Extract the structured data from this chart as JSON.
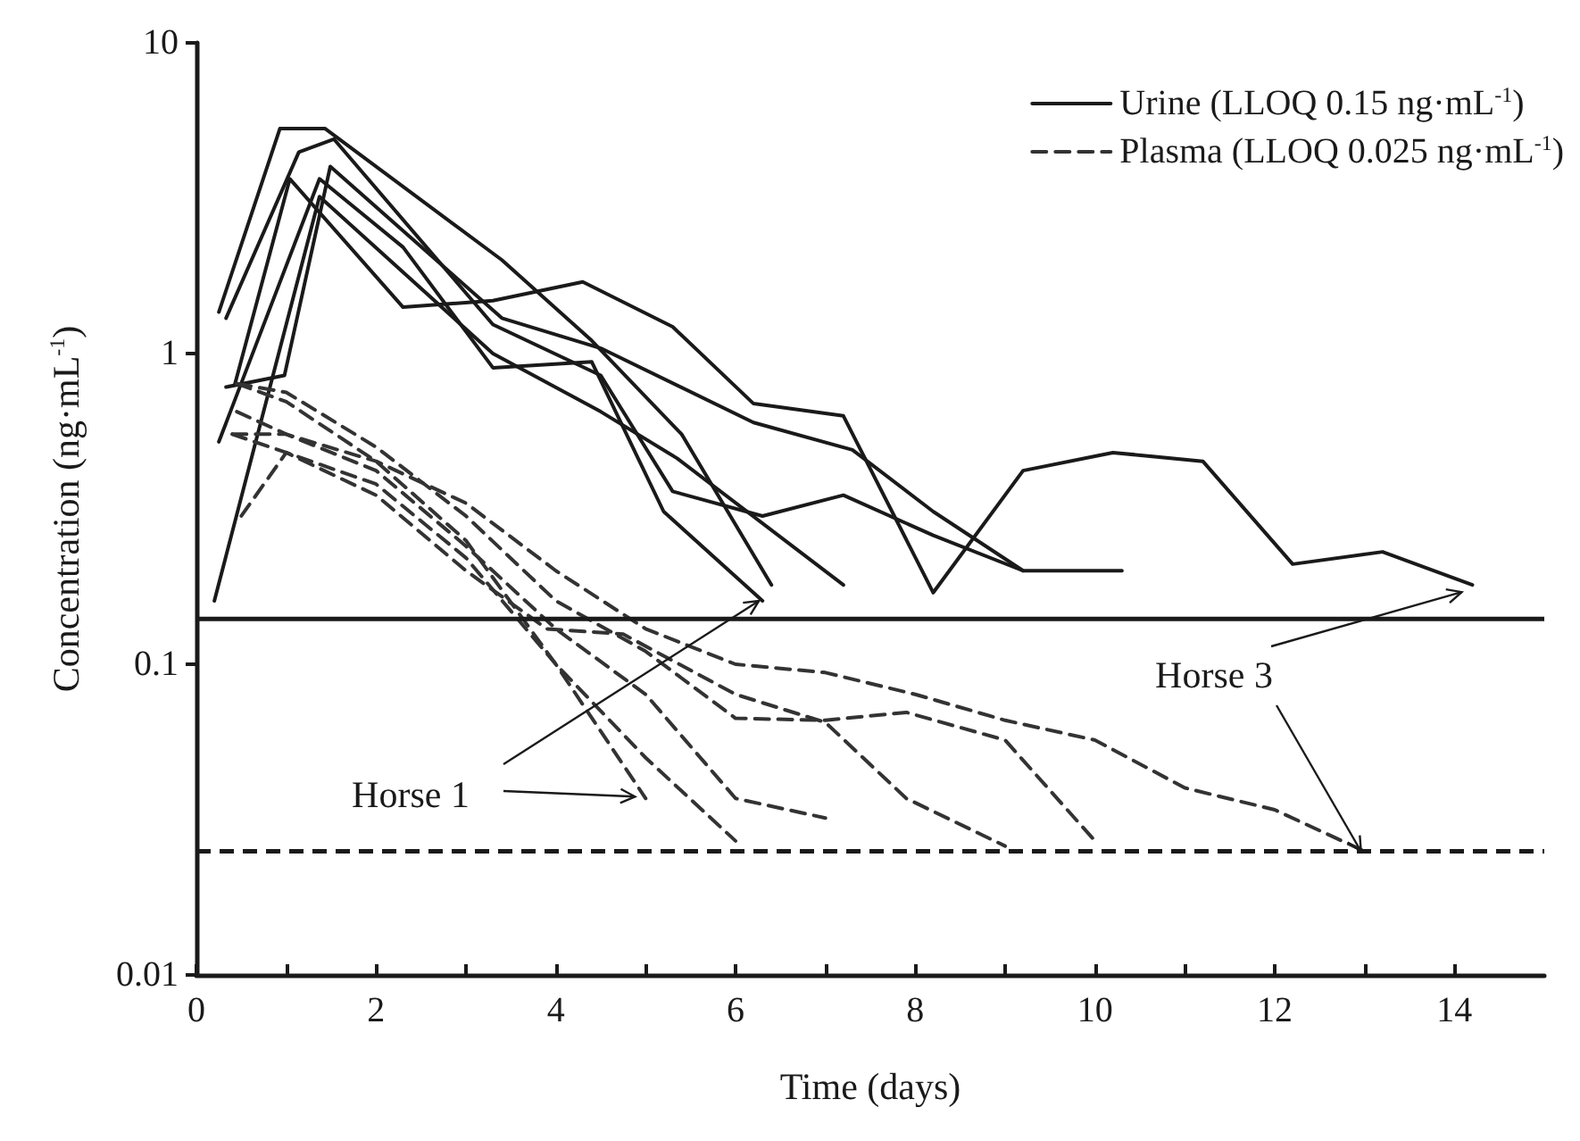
{
  "chart_data": {
    "type": "line",
    "xlabel": "Time (days)",
    "ylabel": "Concentration (ng·mL$^{-1}$)",
    "log": "y",
    "xlim": [
      0,
      15
    ],
    "xticks": [
      0,
      {
        "value": 1,
        "label": null
      },
      2,
      {
        "value": 3,
        "label": null
      },
      4,
      {
        "value": 5,
        "label": null
      },
      6,
      {
        "value": 7,
        "label": null
      },
      8,
      {
        "value": 9,
        "label": null
      },
      10,
      {
        "value": 11,
        "label": null
      },
      12,
      {
        "value": 13,
        "label": null
      },
      14
    ],
    "ylim": [
      0.01,
      10
    ],
    "yticks": [
      0.01,
      0.1,
      1,
      10
    ],
    "grid": false,
    "legend": "top right",
    "marker": "none",
    "series": [
      {
        "name": "Urine (LLOQ 0.15 ng·mL$^{-1}$)",
        "color": "#1a1a1a",
        "line_style": "solid",
        "x": [
          0.25,
          0.93,
          1.43,
          3.4,
          4.4,
          5.4,
          6.4
        ],
        "values": [
          1.36,
          5.3,
          5.3,
          2.0,
          1.1,
          0.55,
          0.18
        ]
      },
      {
        "color": "#1a1a1a",
        "line_style": "solid",
        "x": [
          0.33,
          1.14,
          1.53,
          3.3,
          4.5,
          5.3,
          6.3,
          7.2,
          8.2,
          9.2
        ],
        "values": [
          1.3,
          4.45,
          4.9,
          1.24,
          0.85,
          0.36,
          0.3,
          0.35,
          0.26,
          0.2
        ]
      },
      {
        "color": "#1a1a1a",
        "line_style": "solid",
        "x": [
          0.43,
          1.04,
          2.3,
          3.3,
          4.3,
          5.3,
          6.2,
          7.2,
          8.2,
          9.2,
          10.2,
          11.2,
          12.2,
          13.2,
          14.2
        ],
        "values": [
          0.8,
          3.65,
          1.41,
          1.48,
          1.7,
          1.22,
          0.69,
          0.63,
          0.17,
          0.42,
          0.48,
          0.45,
          0.21,
          0.23,
          0.18
        ]
      },
      {
        "color": "#1a1a1a",
        "line_style": "solid",
        "x": [
          0.33,
          0.98,
          1.49,
          3.4,
          4.5,
          6.2,
          7.3,
          8.2,
          9.2,
          10.3
        ],
        "values": [
          0.78,
          0.85,
          4.0,
          1.3,
          1.04,
          0.6,
          0.49,
          0.31,
          0.2,
          0.2
        ]
      },
      {
        "color": "#1a1a1a",
        "line_style": "solid",
        "x": [
          0.25,
          1.37,
          2.3,
          3.3,
          4.4,
          5.2,
          6.3
        ],
        "values": [
          0.52,
          3.65,
          2.2,
          0.9,
          0.94,
          0.31,
          0.16
        ]
      },
      {
        "color": "#1a1a1a",
        "line_style": "solid",
        "x": [
          0.2,
          1.37,
          3.3,
          4.5,
          5.35,
          7.2
        ],
        "values": [
          0.16,
          3.2,
          1.0,
          0.65,
          0.46,
          0.18
        ]
      },
      {
        "name": "Plasma (LLOQ 0.025 ng·mL$^{-1}$)",
        "color": "#333333",
        "line_style": "dashed",
        "x": [
          0.4,
          1.0,
          2.0,
          3.0,
          4.0,
          5.0
        ],
        "values": [
          0.55,
          0.48,
          0.38,
          0.22,
          0.1,
          0.037
        ]
      },
      {
        "color": "#333333",
        "line_style": "dashed",
        "x": [
          0.45,
          1.0,
          2.0,
          3.0,
          4.0,
          5.0,
          6.0
        ],
        "values": [
          0.8,
          0.7,
          0.45,
          0.25,
          0.1,
          0.05,
          0.027
        ]
      },
      {
        "color": "#333333",
        "line_style": "dashed",
        "x": [
          0.45,
          1.0,
          2.0,
          3.0,
          4.0,
          5.0,
          6.0,
          7.0
        ],
        "values": [
          0.65,
          0.55,
          0.42,
          0.24,
          0.13,
          0.08,
          0.037,
          0.032
        ]
      },
      {
        "color": "#333333",
        "line_style": "dashed",
        "x": [
          0.5,
          1.0,
          2.0,
          3.0,
          3.9,
          4.75,
          6.0,
          7.0,
          7.9,
          9.0
        ],
        "values": [
          0.3,
          0.48,
          0.35,
          0.2,
          0.13,
          0.125,
          0.08,
          0.065,
          0.037,
          0.026
        ]
      },
      {
        "color": "#333333",
        "line_style": "dashed",
        "x": [
          0.45,
          1.0,
          2.0,
          3.0,
          4.0,
          5.0,
          6.0,
          7.0,
          7.9,
          9.0,
          10.0
        ],
        "values": [
          0.8,
          0.75,
          0.5,
          0.3,
          0.16,
          0.11,
          0.067,
          0.066,
          0.07,
          0.057,
          0.027
        ]
      },
      {
        "color": "#333333",
        "line_style": "dashed",
        "x": [
          0.4,
          1.0,
          2.0,
          3.0,
          4.0,
          5.0,
          6.0,
          7.0,
          8.0,
          9.0,
          10.0,
          11.0,
          12.0,
          13.0
        ],
        "values": [
          0.55,
          0.55,
          0.45,
          0.33,
          0.2,
          0.13,
          0.1,
          0.094,
          0.08,
          0.066,
          0.057,
          0.04,
          0.034,
          0.025
        ]
      }
    ],
    "ref_lines": [
      {
        "axis": "y",
        "value": 0.14,
        "color": "#1a1a1a",
        "line_style": "solid"
      },
      {
        "axis": "y",
        "value": 0.025,
        "color": "#1a1a1a",
        "line_style": "dashed"
      }
    ],
    "annotations": [
      {
        "text": "Horse 1",
        "x": 6.3,
        "y": 0.16
      },
      {
        "text": "Horse 3",
        "x": 13.0,
        "y": 0.025
      }
    ]
  }
}
